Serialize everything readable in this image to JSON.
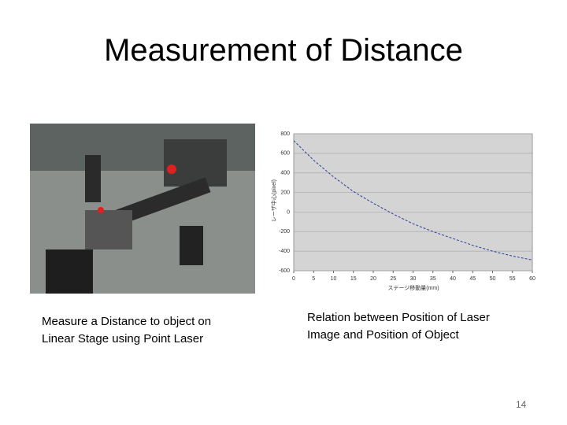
{
  "title": "Measurement of Distance",
  "photo_caption": "Measure a Distance to object on Linear Stage using Point Laser",
  "chart_caption": "Relation between Position of Laser Image and Position of Object",
  "page_number": "14",
  "chart_data": {
    "type": "line",
    "x_label": "ステージ移動量(mm)",
    "y_label": "レーザ中心(pixel)",
    "x": [
      0,
      5,
      10,
      15,
      20,
      25,
      30,
      35,
      40,
      45,
      50,
      55,
      60
    ],
    "series": [
      {
        "name": null,
        "color": "#2a3a9a",
        "values": [
          730,
          530,
          360,
          210,
          90,
          -20,
          -120,
          -200,
          -270,
          -340,
          -400,
          -450,
          -490
        ]
      }
    ],
    "xlim": [
      0,
      60
    ],
    "xticks": [
      0,
      5,
      10,
      15,
      20,
      25,
      30,
      35,
      40,
      45,
      50,
      55,
      60
    ],
    "ylim": [
      -600,
      800
    ],
    "yticks": [
      -600,
      -400,
      -200,
      0,
      200,
      400,
      600,
      800
    ],
    "grid": true,
    "dashed": true
  }
}
